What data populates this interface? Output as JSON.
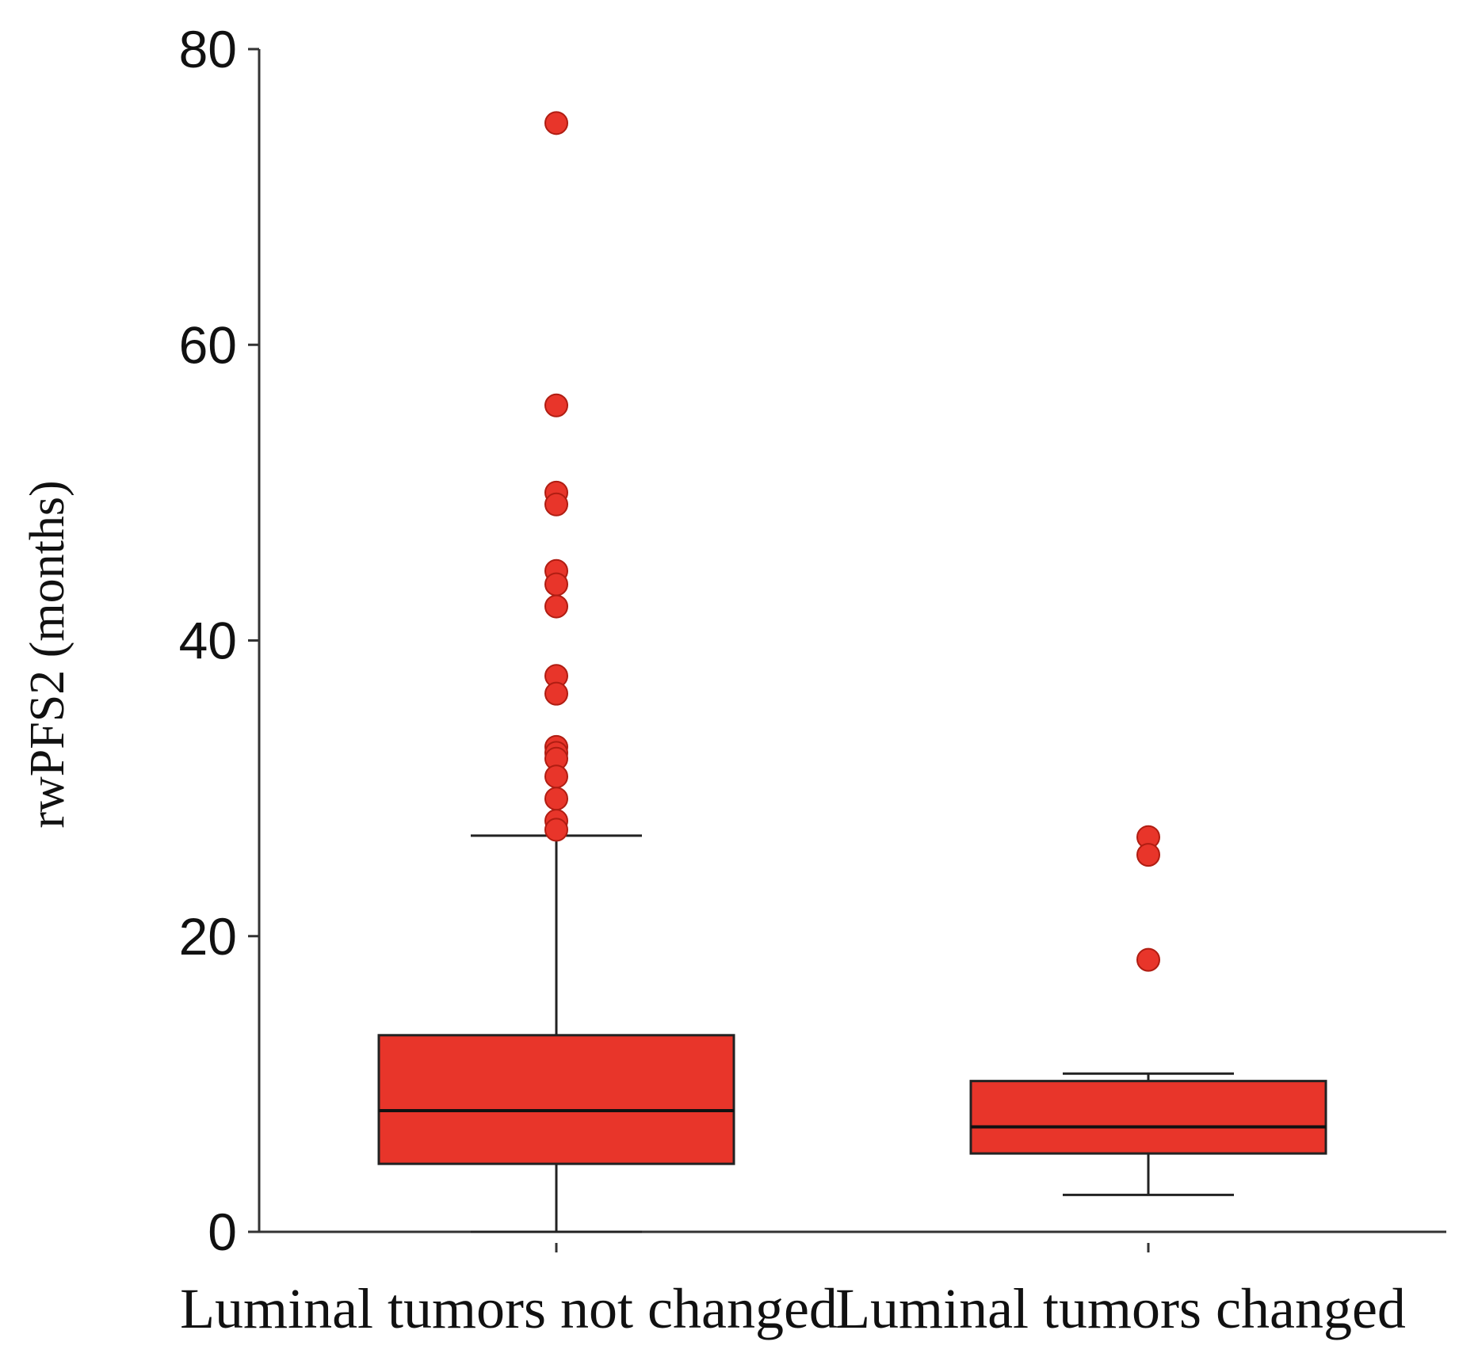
{
  "chart_data": {
    "type": "box",
    "ylabel": "rwPFS2 (months)",
    "ylim": [
      0,
      80
    ],
    "yticks": [
      0,
      20,
      40,
      60,
      80
    ],
    "grid": false,
    "box_color": "#e8352a",
    "outlier_color": "#e8352a",
    "categories": [
      "Luminal tumors not changed",
      "Luminal tumors changed"
    ],
    "boxes": [
      {
        "category": "Luminal tumors not changed",
        "whisker_low": 0,
        "q1": 4.6,
        "median": 8.2,
        "q3": 13.3,
        "whisker_high": 26.8,
        "outliers": [
          75,
          55.9,
          50,
          49.2,
          44.7,
          43.8,
          42.3,
          37.6,
          36.4,
          32.8,
          32.4,
          32,
          30.8,
          29.3,
          27.8,
          27.2
        ]
      },
      {
        "category": "Luminal tumors changed",
        "whisker_low": 2.5,
        "q1": 5.3,
        "median": 7.1,
        "q3": 10.2,
        "whisker_high": 10.7,
        "outliers": [
          26.7,
          25.5,
          18.4
        ]
      }
    ]
  }
}
